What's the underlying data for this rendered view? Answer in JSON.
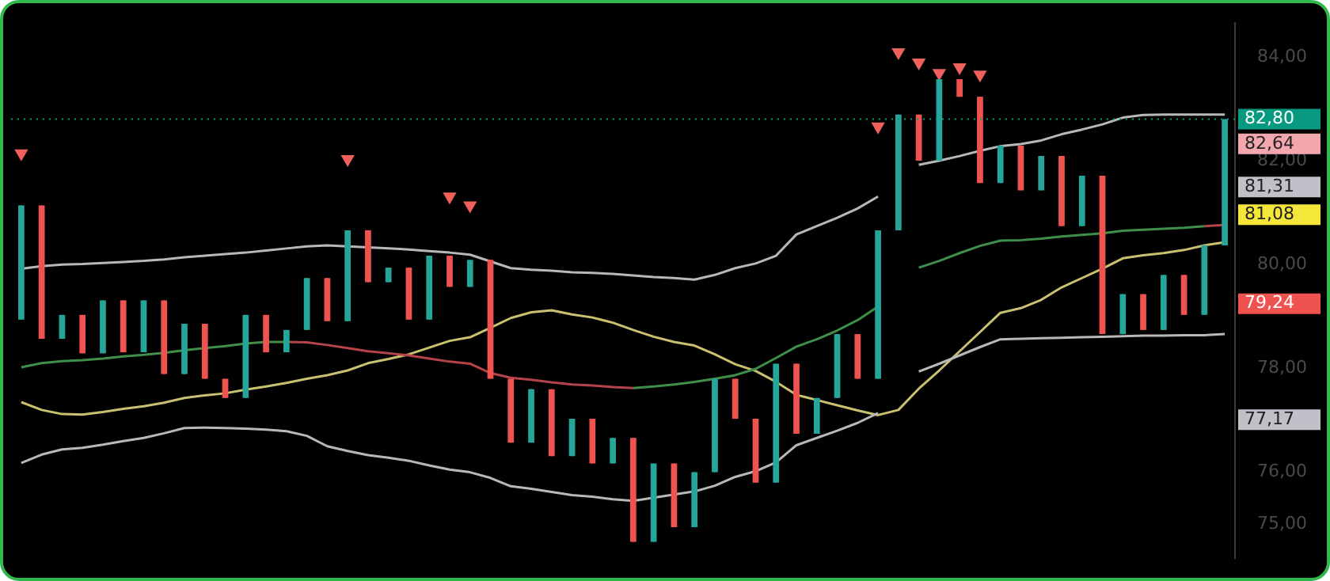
{
  "chart_data": {
    "type": "candlestick",
    "categories": [
      null,
      null,
      null,
      null,
      null,
      null,
      null,
      null,
      null,
      null,
      null,
      null,
      null,
      null,
      null,
      null,
      null,
      null,
      null,
      null,
      null,
      null,
      null,
      null,
      null,
      null,
      null,
      null,
      null,
      null,
      null,
      null,
      null,
      null,
      null,
      null,
      null,
      null,
      null,
      null,
      null,
      null,
      null,
      null,
      null,
      null,
      null,
      null,
      null,
      null,
      null,
      null,
      null,
      null,
      null,
      null,
      null,
      null,
      null,
      null
    ],
    "ohlc": [
      [
        78.94,
        81.14,
        78.94,
        81.14
      ],
      [
        81.14,
        81.14,
        78.57,
        78.57
      ],
      [
        78.57,
        79.03,
        78.57,
        79.03
      ],
      [
        79.03,
        79.03,
        78.29,
        78.29
      ],
      [
        78.29,
        79.31,
        78.29,
        79.31
      ],
      [
        79.31,
        79.31,
        78.31,
        78.31
      ],
      [
        78.31,
        79.31,
        78.31,
        79.31
      ],
      [
        79.31,
        79.31,
        77.89,
        77.89
      ],
      [
        77.89,
        78.86,
        77.89,
        78.86
      ],
      [
        78.86,
        78.86,
        77.8,
        77.8
      ],
      [
        77.8,
        77.8,
        77.43,
        77.43
      ],
      [
        77.43,
        79.03,
        77.43,
        79.03
      ],
      [
        79.03,
        79.03,
        78.31,
        78.31
      ],
      [
        78.31,
        78.74,
        78.31,
        78.74
      ],
      [
        78.74,
        79.74,
        78.74,
        79.74
      ],
      [
        79.74,
        79.74,
        78.91,
        78.91
      ],
      [
        78.91,
        80.66,
        78.91,
        80.66
      ],
      [
        80.66,
        80.66,
        79.66,
        79.66
      ],
      [
        79.66,
        79.94,
        79.66,
        79.94
      ],
      [
        79.94,
        79.94,
        78.94,
        78.94
      ],
      [
        78.94,
        80.17,
        78.94,
        80.17
      ],
      [
        80.17,
        80.17,
        79.57,
        79.57
      ],
      [
        79.57,
        80.09,
        79.57,
        80.09
      ],
      [
        80.09,
        80.09,
        77.8,
        77.8
      ],
      [
        77.8,
        77.8,
        76.57,
        76.57
      ],
      [
        76.57,
        77.6,
        76.57,
        77.6
      ],
      [
        77.6,
        77.6,
        76.31,
        76.31
      ],
      [
        76.31,
        77.03,
        76.31,
        77.03
      ],
      [
        77.03,
        77.03,
        76.17,
        76.17
      ],
      [
        76.17,
        76.66,
        76.17,
        76.66
      ],
      [
        76.66,
        76.66,
        74.66,
        74.66
      ],
      [
        74.66,
        76.17,
        74.66,
        76.17
      ],
      [
        76.17,
        76.17,
        74.94,
        74.94
      ],
      [
        74.94,
        76.0,
        74.94,
        76.0
      ],
      [
        76.0,
        77.8,
        76.0,
        77.8
      ],
      [
        77.8,
        77.8,
        77.03,
        77.03
      ],
      [
        77.03,
        77.03,
        75.8,
        75.8
      ],
      [
        75.8,
        78.09,
        75.8,
        78.09
      ],
      [
        78.09,
        78.09,
        76.74,
        76.74
      ],
      [
        76.74,
        77.43,
        76.74,
        77.43
      ],
      [
        77.43,
        78.66,
        77.43,
        78.66
      ],
      [
        78.66,
        78.66,
        77.8,
        77.8
      ],
      [
        77.8,
        80.66,
        77.8,
        80.66
      ],
      [
        80.66,
        82.89,
        80.66,
        82.89
      ],
      [
        82.89,
        82.89,
        82.0,
        82.0
      ],
      [
        82.0,
        83.57,
        82.0,
        83.57
      ],
      [
        83.57,
        83.57,
        83.23,
        83.23
      ],
      [
        83.23,
        83.23,
        81.57,
        81.57
      ],
      [
        81.57,
        82.29,
        81.57,
        82.29
      ],
      [
        82.29,
        82.29,
        81.43,
        81.43
      ],
      [
        81.43,
        82.09,
        81.43,
        82.09
      ],
      [
        82.09,
        82.09,
        80.74,
        80.74
      ],
      [
        80.74,
        81.71,
        80.74,
        81.71
      ],
      [
        81.71,
        81.71,
        78.66,
        78.66
      ],
      [
        78.66,
        79.43,
        78.66,
        79.43
      ],
      [
        79.43,
        79.43,
        78.74,
        78.74
      ],
      [
        78.74,
        79.8,
        78.74,
        79.8
      ],
      [
        79.8,
        79.8,
        79.03,
        79.03
      ],
      [
        79.03,
        80.37,
        79.03,
        80.37
      ],
      [
        80.37,
        82.8,
        80.37,
        82.8
      ]
    ],
    "series": [
      {
        "type": "line",
        "color": "#b8b8b8",
        "values": [
          79.92,
          79.97,
          80.0,
          80.01,
          80.03,
          80.05,
          80.07,
          80.1,
          80.14,
          80.17,
          80.2,
          80.23,
          80.27,
          80.31,
          80.35,
          80.37,
          80.35,
          80.33,
          80.31,
          80.29,
          80.26,
          80.23,
          80.19,
          80.06,
          79.93,
          79.9,
          79.88,
          79.85,
          79.84,
          79.82,
          79.79,
          79.76,
          79.74,
          79.71,
          79.8,
          79.93,
          80.02,
          80.17,
          80.58,
          80.74,
          80.9,
          81.08,
          81.31,
          null,
          81.92,
          82.0,
          82.09,
          82.19,
          82.28,
          82.32,
          82.39,
          82.51,
          82.6,
          82.7,
          82.83,
          82.88,
          82.89,
          82.89,
          82.89,
          82.89
        ]
      },
      {
        "type": "line",
        "color": "#b8b8b8",
        "values": [
          76.18,
          76.34,
          76.44,
          76.47,
          76.53,
          76.6,
          76.66,
          76.75,
          76.85,
          76.86,
          76.85,
          76.84,
          76.82,
          76.79,
          76.7,
          76.5,
          76.41,
          76.33,
          76.28,
          76.22,
          76.13,
          76.05,
          76.0,
          75.89,
          75.73,
          75.68,
          75.62,
          75.56,
          75.53,
          75.48,
          75.45,
          75.51,
          75.57,
          75.63,
          75.74,
          75.91,
          76.02,
          76.19,
          76.52,
          76.66,
          76.8,
          76.95,
          77.14,
          null,
          77.94,
          78.09,
          78.25,
          78.41,
          78.56,
          78.57,
          78.58,
          78.59,
          78.6,
          78.61,
          78.62,
          78.63,
          78.63,
          78.64,
          78.64,
          78.66
        ]
      },
      {
        "type": "line",
        "color": "#3f8f4a",
        "values": [
          78.02,
          78.1,
          78.14,
          78.16,
          78.19,
          78.23,
          78.26,
          78.3,
          78.35,
          78.39,
          78.43,
          78.48,
          78.51,
          78.51,
          null,
          null,
          null,
          null,
          null,
          null,
          null,
          null,
          null,
          null,
          null,
          null,
          null,
          null,
          null,
          null,
          77.62,
          77.65,
          77.69,
          77.74,
          77.8,
          77.87,
          77.99,
          78.2,
          78.42,
          78.56,
          78.73,
          78.93,
          79.19,
          null,
          79.94,
          80.07,
          80.22,
          80.36,
          80.46,
          80.47,
          80.5,
          80.54,
          80.57,
          80.6,
          80.65,
          80.67,
          80.69,
          80.71,
          80.74,
          null
        ]
      },
      {
        "type": "line",
        "color": "#b5444a",
        "values": [
          null,
          null,
          null,
          null,
          null,
          null,
          null,
          null,
          null,
          null,
          null,
          null,
          null,
          78.51,
          78.5,
          78.45,
          78.39,
          78.33,
          78.29,
          78.25,
          78.19,
          78.13,
          78.09,
          77.91,
          77.82,
          77.78,
          77.73,
          77.69,
          77.67,
          77.64,
          77.62,
          null,
          null,
          null,
          null,
          null,
          null,
          null,
          null,
          null,
          null,
          null,
          null,
          null,
          null,
          null,
          null,
          null,
          null,
          null,
          null,
          null,
          null,
          null,
          null,
          null,
          null,
          null,
          80.74,
          80.76
        ]
      },
      {
        "type": "line",
        "color": "#c9c070",
        "values": [
          77.35,
          77.2,
          77.12,
          77.11,
          77.16,
          77.22,
          77.27,
          77.34,
          77.43,
          77.48,
          77.52,
          77.59,
          77.65,
          77.72,
          77.8,
          77.87,
          77.96,
          78.1,
          78.18,
          78.27,
          78.4,
          78.53,
          78.6,
          78.78,
          78.97,
          79.08,
          79.12,
          79.04,
          78.98,
          78.88,
          78.74,
          78.61,
          78.51,
          78.44,
          78.27,
          78.08,
          77.95,
          77.74,
          77.49,
          77.39,
          77.29,
          77.19,
          77.1,
          77.2,
          77.61,
          77.96,
          78.33,
          78.7,
          79.07,
          79.16,
          79.32,
          79.56,
          79.74,
          79.92,
          80.12,
          80.18,
          80.22,
          80.28,
          80.37,
          80.43
        ]
      },
      {
        "type": "scatter",
        "marker": "triangle",
        "color": "#f0605d",
        "values": [
          82.14,
          null,
          null,
          null,
          null,
          null,
          null,
          null,
          null,
          null,
          null,
          null,
          null,
          null,
          null,
          null,
          82.03,
          null,
          null,
          null,
          null,
          81.31,
          81.14,
          null,
          null,
          null,
          null,
          null,
          null,
          null,
          null,
          null,
          null,
          null,
          null,
          null,
          null,
          null,
          null,
          null,
          null,
          null,
          82.66,
          84.09,
          83.89,
          83.69,
          83.8,
          83.66,
          null,
          null,
          null,
          null,
          null,
          null,
          null,
          null,
          null,
          null,
          null,
          null
        ]
      }
    ],
    "ylim": [
      74.35,
      84.65
    ],
    "yticks": [
      {
        "value": 84,
        "label": "84,00"
      },
      {
        "value": 82,
        "label": "82,00"
      },
      {
        "value": 80,
        "label": "80,00"
      },
      {
        "value": 78,
        "label": "78,00"
      },
      {
        "value": 76,
        "label": "76,00"
      },
      {
        "value": 75,
        "label": "75,00"
      }
    ],
    "tick_labels": "y",
    "grid": false,
    "legend": false,
    "ref_lines": [
      {
        "axis": "y",
        "value": 82.8,
        "label": "82,80",
        "color": "#089981",
        "line_style": "dotted"
      }
    ],
    "annotations": [
      "82,64",
      "81,31",
      "81,08",
      "79,24",
      "77,17"
    ]
  }
}
